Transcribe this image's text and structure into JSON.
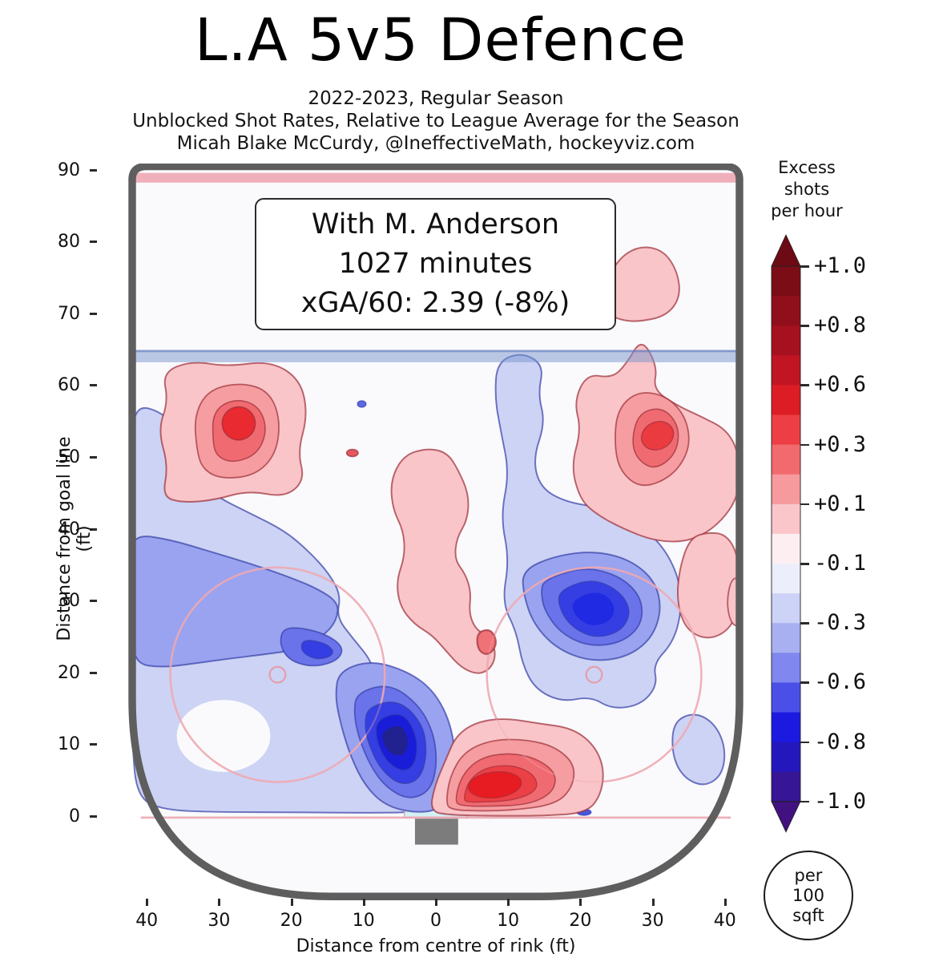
{
  "header": {
    "title": "L.A 5v5 Defence",
    "subtitle1": "2022-2023, Regular Season",
    "subtitle2": "Unblocked Shot Rates, Relative to League Average for the Season",
    "subtitle3": "Micah Blake McCurdy, @IneffectiveMath, hockeyviz.com"
  },
  "annotation": {
    "line1": "With M. Anderson",
    "line2": "1027 minutes",
    "line3": "xGA/60: 2.39 (-8%)"
  },
  "badge": {
    "line1": "per",
    "line2": "100",
    "line3": "sqft"
  },
  "colorbar_legend": {
    "line1": "Excess",
    "line2": "shots",
    "line3": "per hour"
  },
  "chart_data": {
    "type": "heatmap",
    "subtype": "filled-contour shot-rate map on half hockey rink",
    "title": "L.A 5v5 Defence",
    "season": "2022-2023",
    "season_type": "Regular Season",
    "metric": "Unblocked Shot Rates, Relative to League Average for the Season",
    "credit": "Micah Blake McCurdy, @IneffectiveMath, hockeyviz.com",
    "split": {
      "label": "With M. Anderson",
      "minutes": 1027,
      "xGA_per_60": 2.39,
      "relative_to_league": "-8%"
    },
    "x_axis": {
      "label": "Distance from centre of rink (ft)",
      "range": [
        -43,
        43
      ],
      "tick_values": [
        -40,
        -30,
        -20,
        -10,
        0,
        10,
        20,
        30,
        40
      ],
      "tick_labels": [
        "40",
        "30",
        "20",
        "10",
        "0",
        "10",
        "20",
        "30",
        "40"
      ]
    },
    "y_axis": {
      "label": "Distance from goal line (ft)",
      "range": [
        0,
        90
      ],
      "tick_values": [
        90,
        80,
        70,
        60,
        50,
        40,
        30,
        20,
        10,
        0
      ],
      "tick_labels": [
        "90",
        "80",
        "70",
        "60",
        "50",
        "40",
        "30",
        "20",
        "10",
        "0"
      ]
    },
    "colorbar": {
      "label": "Excess shots per hour",
      "area_note": "per 100 sqft",
      "tick_labels": [
        "+1.0",
        "+0.8",
        "+0.6",
        "+0.3",
        "+0.1",
        "-0.1",
        "-0.3",
        "-0.6",
        "-0.8",
        "-1.0"
      ],
      "tick_values": [
        1.0,
        0.8,
        0.6,
        0.3,
        0.1,
        -0.1,
        -0.3,
        -0.6,
        -0.8,
        -1.0
      ],
      "tick_spacing": "uniform",
      "arrow_ends": true
    },
    "palette": {
      "excess": [
        "#fac6c9",
        "#f69a9e",
        "#f16a6e",
        "#ec3e44",
        "#e61c22",
        "#c11523",
        "#8f0f1b",
        "#6e0a14"
      ],
      "deficit": [
        "#ccd3f6",
        "#a9b0f2",
        "#6a73ea",
        "#343ee3",
        "#1a1dd8",
        "#21218f",
        "#361694",
        "#421181"
      ],
      "neutral": "#fdf3f5",
      "rink_lines": {
        "blue_line": "#8ea4cf",
        "red_lines": "#eca5b1",
        "boards": "#5e5e5e",
        "net": "#7c7c7c"
      }
    },
    "rink_features": {
      "centre_line_y_ft": 89,
      "blue_line_y_ft": 64,
      "goal_line_y_ft": 0,
      "faceoff_circles": [
        {
          "x": -22,
          "y": 20,
          "r": 15
        },
        {
          "x": 22,
          "y": 20,
          "r": 15
        }
      ],
      "net": {
        "x": 0,
        "width_ft": 6,
        "depth_ft": 3.6
      }
    },
    "regions": [
      {
        "name": "left-point-hotspot",
        "x": -27,
        "y": 55,
        "peak_excess": 0.65
      },
      {
        "name": "right-point-hotspot",
        "x": 31,
        "y": 53,
        "peak_excess": 0.45
      },
      {
        "name": "high-zone-right-blob",
        "x": 29,
        "y": 74,
        "peak_excess": 0.15
      },
      {
        "name": "centre-high-slot-column",
        "x": 0,
        "y": 38,
        "peak_excess": 0.15
      },
      {
        "name": "inner-slot-spot",
        "x": 7,
        "y": 24,
        "peak_excess": 0.35
      },
      {
        "name": "near-crease-right-hotspot",
        "x": 8,
        "y": 5.5,
        "peak_excess": 0.7
      },
      {
        "name": "near-crease-left-cold-core",
        "x": -5,
        "y": 11,
        "peak_excess": -0.85
      },
      {
        "name": "right-faceoff-cold-core",
        "x": 22,
        "y": 29,
        "peak_excess": -0.6
      },
      {
        "name": "left-mid-cold-blob",
        "x": -17,
        "y": 24,
        "peak_excess": -0.5
      },
      {
        "name": "broad-left-cold-region",
        "x": -25,
        "y": 30,
        "peak_excess": -0.3
      },
      {
        "name": "right-wall-cool-blob",
        "x": 36.5,
        "y": 9,
        "peak_excess": -0.15
      }
    ]
  }
}
